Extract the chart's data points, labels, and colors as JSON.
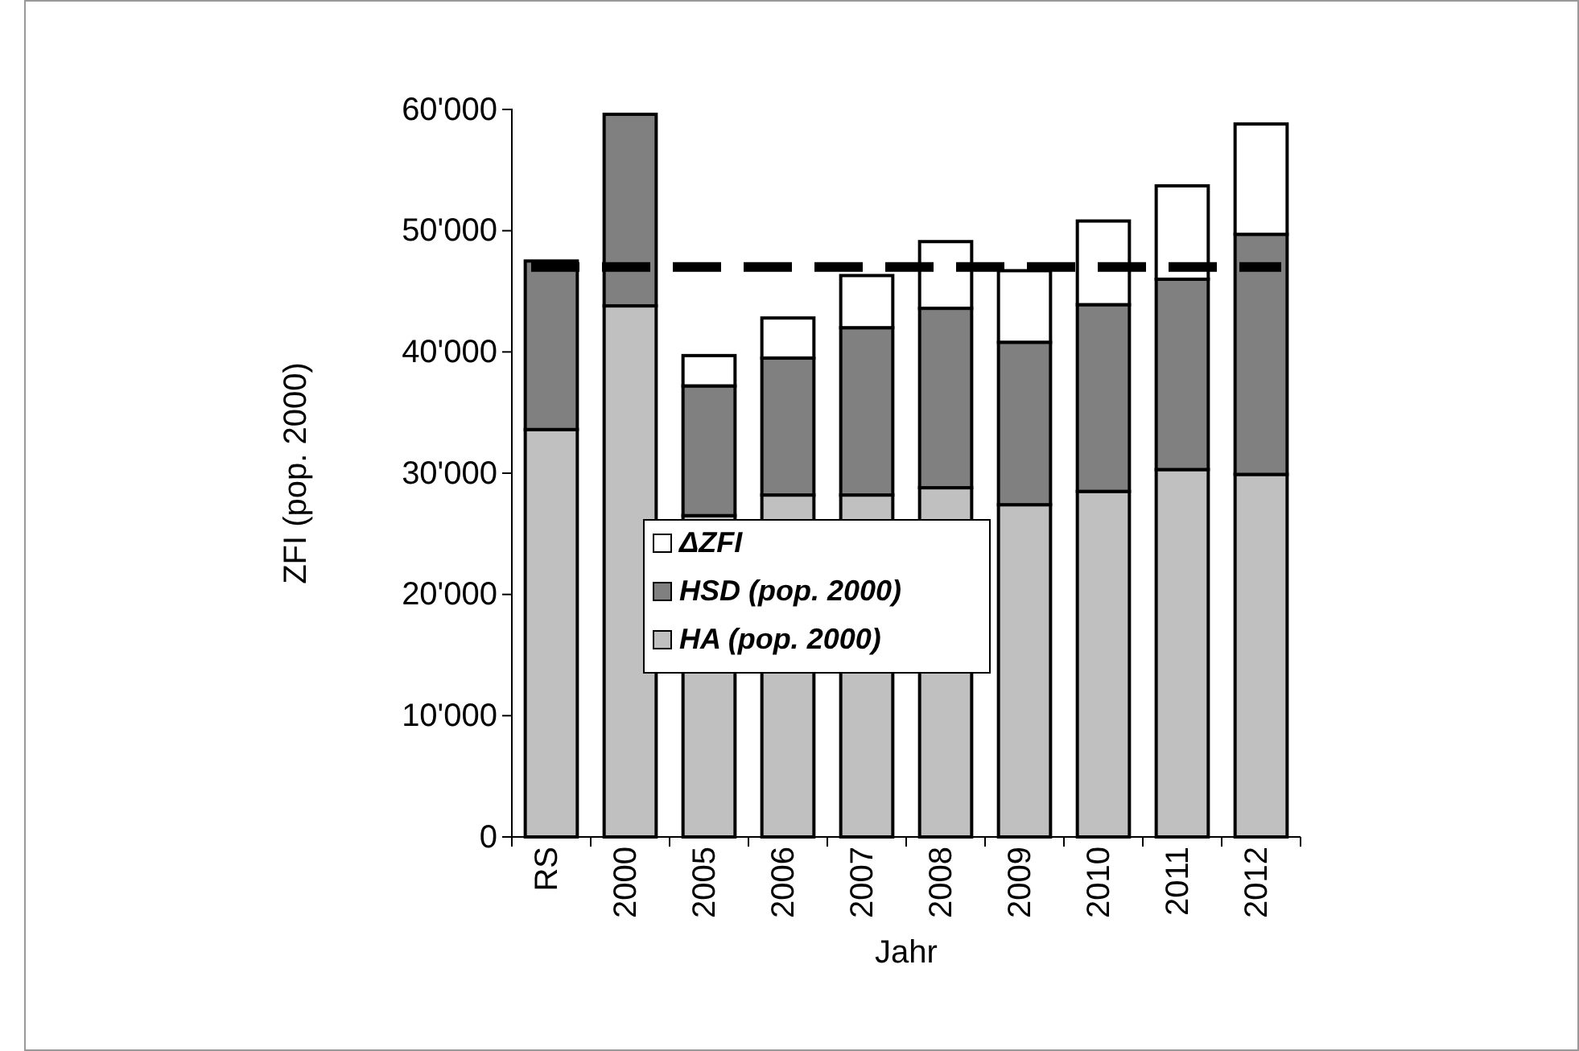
{
  "chart_data": {
    "type": "bar",
    "stacked": true,
    "xlabel": "Jahr",
    "ylabel": "ZFI (pop. 2000)",
    "categories": [
      "RS",
      "2000",
      "2005",
      "2006",
      "2007",
      "2008",
      "2009",
      "2010",
      "2011",
      "2012"
    ],
    "series": [
      {
        "name": "HA (pop. 2000)",
        "color": "#c0c0c0",
        "values": [
          33600,
          43800,
          26500,
          28200,
          28200,
          28800,
          27400,
          28500,
          30300,
          29900
        ]
      },
      {
        "name": "HSD (pop. 2000)",
        "color": "#808080",
        "values": [
          13900,
          15800,
          10700,
          11300,
          13800,
          14800,
          13400,
          15400,
          15700,
          19800
        ]
      },
      {
        "name": "ΔZFI",
        "color": "#ffffff",
        "values": [
          null,
          null,
          2500,
          3300,
          4300,
          5500,
          5900,
          6900,
          7700,
          9100
        ]
      }
    ],
    "ylim": [
      0,
      60000
    ],
    "yticks": [
      0,
      {
        "value": 10000,
        "label": "10'000"
      },
      {
        "value": 20000,
        "label": "20'000"
      },
      {
        "value": 30000,
        "label": "30'000"
      },
      {
        "value": 40000,
        "label": "40'000"
      },
      {
        "value": 50000,
        "label": "50'000"
      },
      {
        "value": 60000,
        "label": "60'000"
      }
    ],
    "ref_lines": [
      {
        "axis": "y",
        "value": 47000,
        "color": "#000000",
        "line_style": "dashed"
      }
    ],
    "legend": "bottom"
  }
}
